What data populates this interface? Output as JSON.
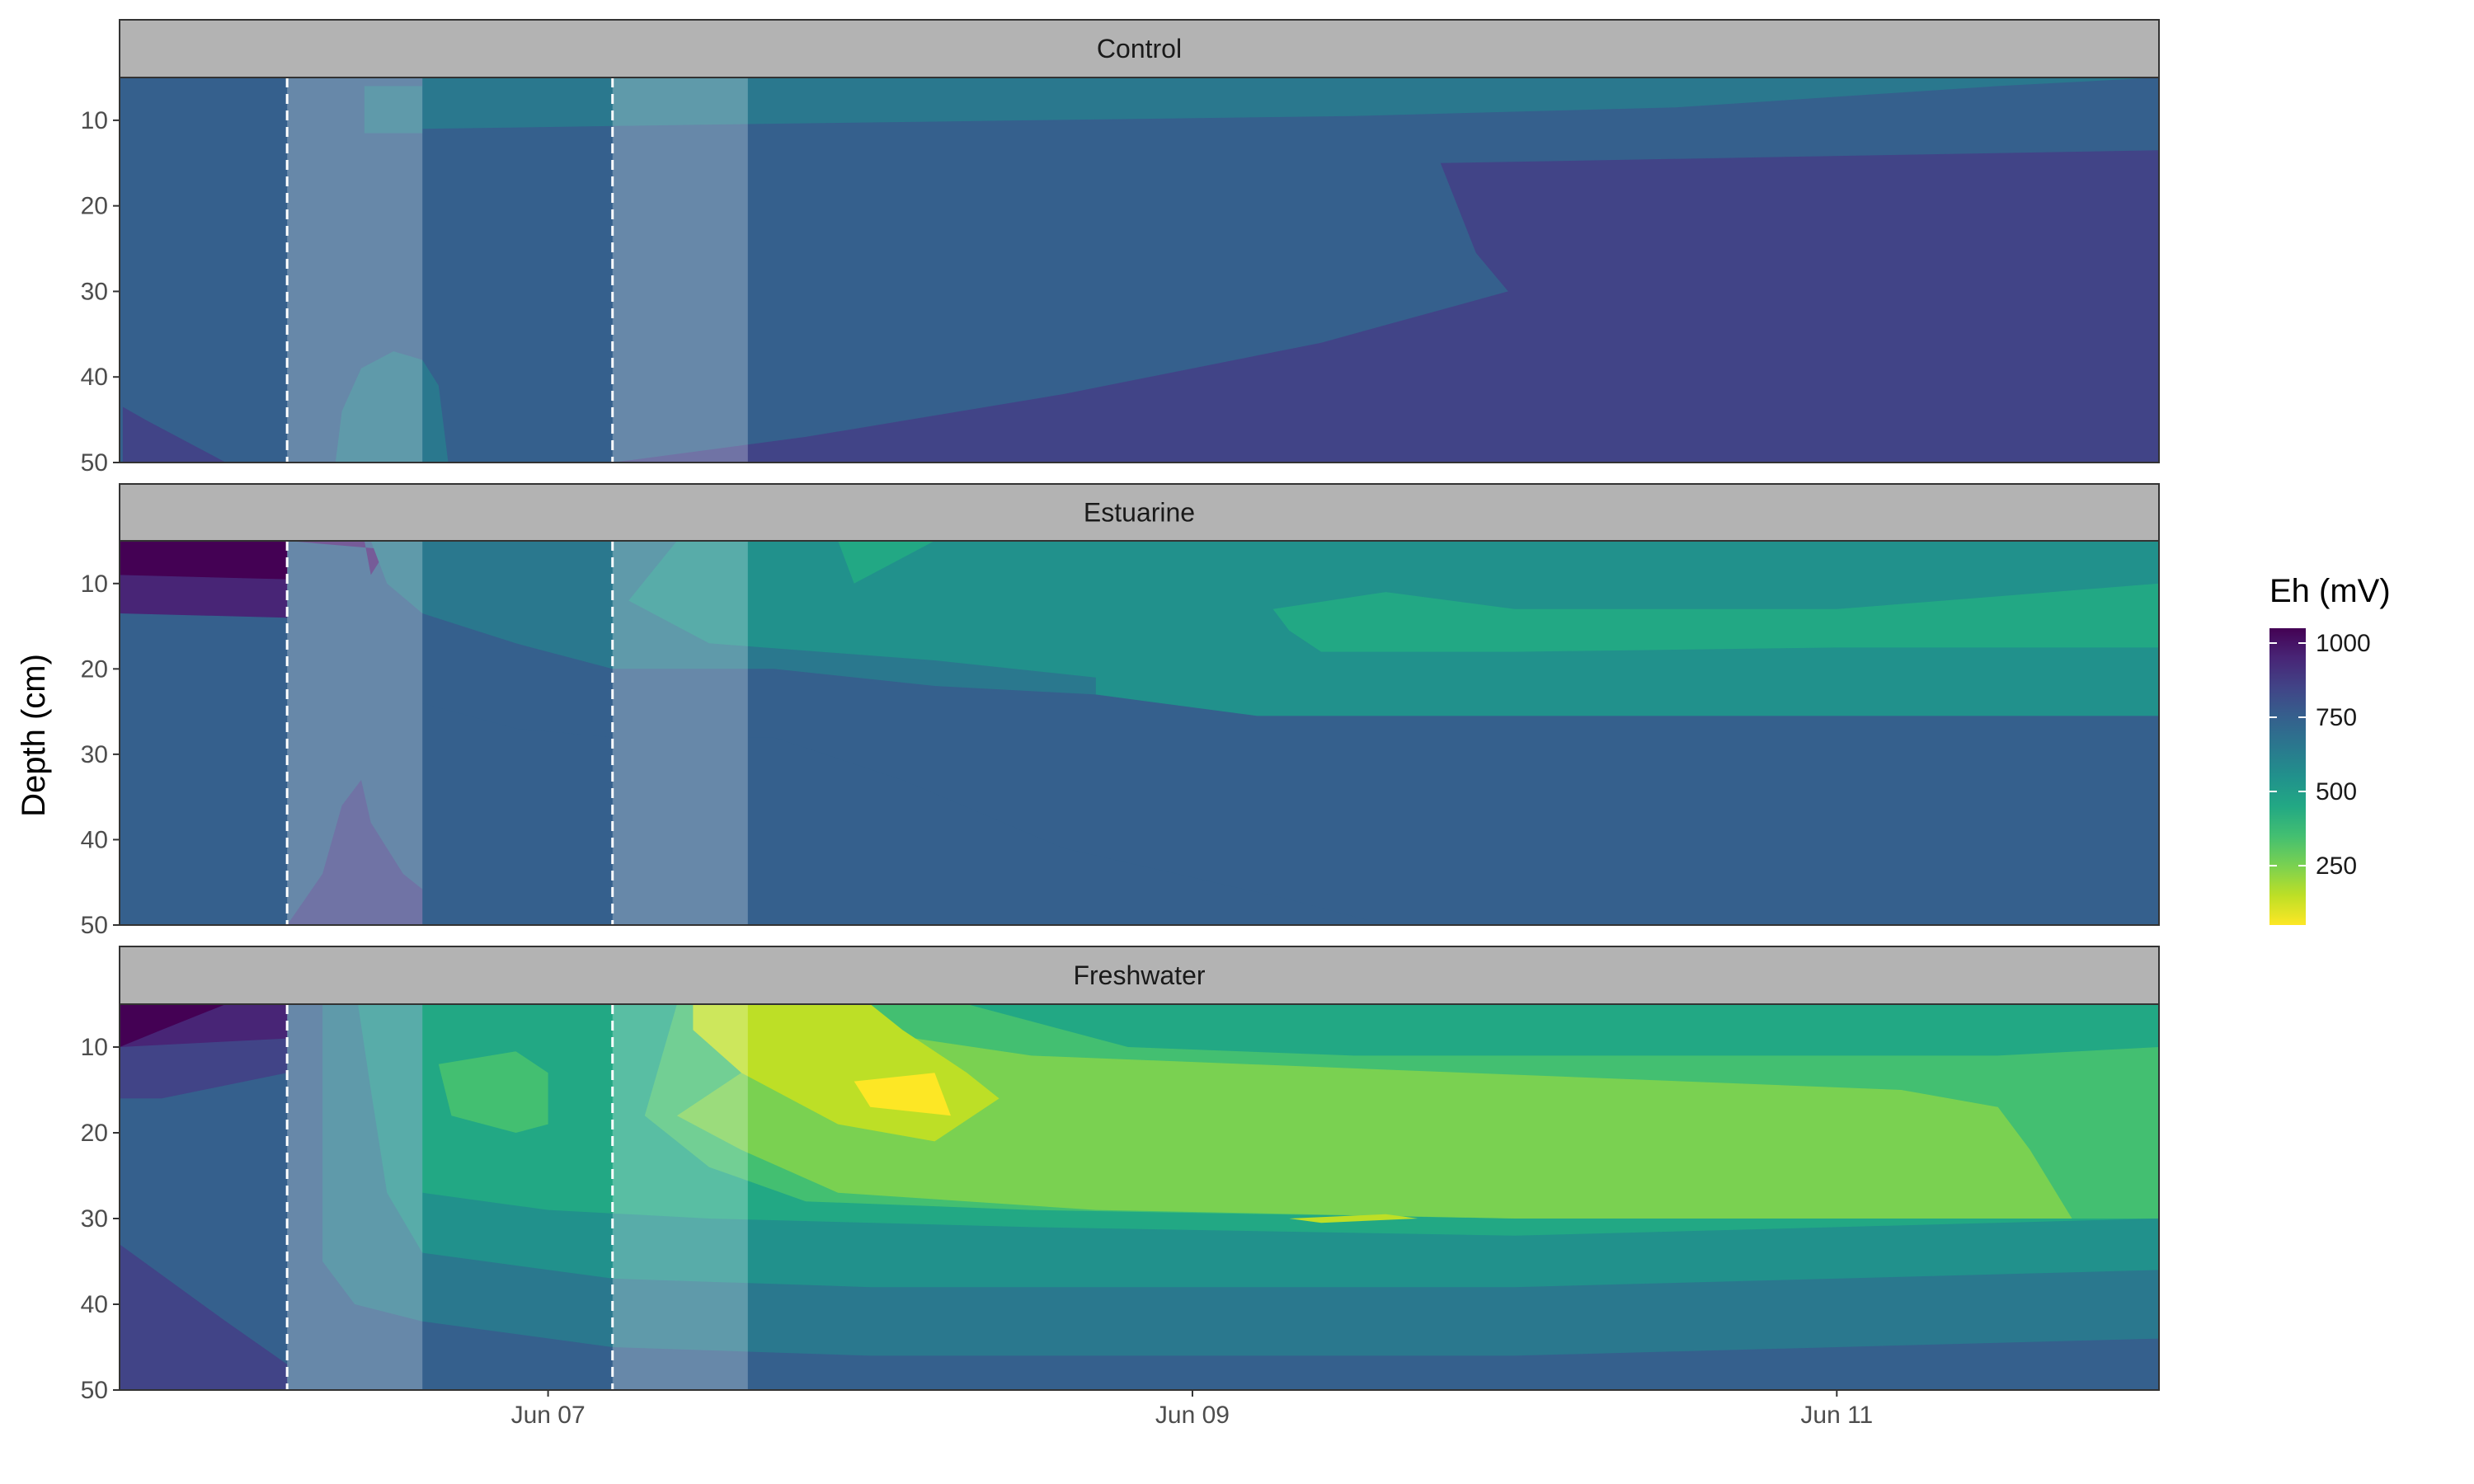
{
  "chart_data": {
    "type": "heatmap",
    "subtype": "faceted filled contour",
    "title": "",
    "xlabel": "",
    "ylabel": "Depth (cm)",
    "x_ticks": [
      "Jun 07",
      "Jun 09",
      "Jun 11"
    ],
    "x_tick_days": [
      7,
      9,
      11
    ],
    "xlim_days": [
      5.67,
      12
    ],
    "y_reversed": true,
    "ylim": [
      5,
      50
    ],
    "y_ticks": [
      10,
      20,
      30,
      40,
      50
    ],
    "grid": false,
    "color_scale": {
      "title": "Eh (mV)",
      "palette": "viridis (reversed)",
      "range": [
        50,
        1050
      ],
      "breaks": [
        1000,
        750,
        500,
        250
      ],
      "high_color": "#440154",
      "low_color": "#fde725"
    },
    "legend_position": "right",
    "events": {
      "dashed_lines_days": [
        6.19,
        7.2
      ],
      "shaded_periods_days": [
        [
          6.19,
          6.61
        ],
        [
          7.2,
          7.62
        ]
      ]
    },
    "band_colors": [
      "#440154",
      "#482576",
      "#414487",
      "#35608d",
      "#2a788e",
      "#21918c",
      "#22a884",
      "#43bf71",
      "#7ad151",
      "#bddf26",
      "#fde725"
    ],
    "band_eh_ranges_mv": [
      [
        950,
        1050
      ],
      [
        850,
        950
      ],
      [
        750,
        850
      ],
      [
        650,
        750
      ],
      [
        550,
        650
      ],
      [
        450,
        550
      ],
      [
        350,
        450
      ],
      [
        250,
        350
      ],
      [
        150,
        250
      ],
      [
        100,
        150
      ],
      [
        50,
        100
      ]
    ],
    "panels": [
      {
        "name": "Control",
        "background_band": 3,
        "regions": [
          {
            "band": 2,
            "points": [
              [
                5.68,
                43.5
              ],
              [
                5.75,
                45
              ],
              [
                5.9,
                48
              ],
              [
                6.0,
                50
              ],
              [
                5.68,
                50
              ]
            ]
          },
          {
            "band": 4,
            "points": [
              [
                6.43,
                6
              ],
              [
                6.61,
                6
              ],
              [
                6.61,
                11.5
              ],
              [
                6.43,
                11.5
              ]
            ]
          },
          {
            "band": 4,
            "points": [
              [
                6.61,
                5
              ],
              [
                12,
                5
              ],
              [
                11.5,
                6
              ],
              [
                10.5,
                8.5
              ],
              [
                9.5,
                9.5
              ],
              [
                8.5,
                10
              ],
              [
                7.5,
                10.5
              ],
              [
                6.61,
                11
              ]
            ]
          },
          {
            "band": 4,
            "points": [
              [
                6.34,
                50
              ],
              [
                6.36,
                44
              ],
              [
                6.42,
                39
              ],
              [
                6.52,
                37
              ],
              [
                6.61,
                38
              ],
              [
                6.61,
                50
              ]
            ]
          },
          {
            "band": 4,
            "points": [
              [
                6.61,
                38
              ],
              [
                6.66,
                41
              ],
              [
                6.69,
                50
              ],
              [
                6.61,
                50
              ]
            ]
          },
          {
            "band": 2,
            "points": [
              [
                9.77,
                15
              ],
              [
                12,
                13.5
              ],
              [
                12,
                50
              ],
              [
                7.2,
                50
              ],
              [
                7.8,
                47
              ],
              [
                8.6,
                42
              ],
              [
                9.4,
                36
              ],
              [
                9.98,
                30
              ],
              [
                9.88,
                25.5
              ]
            ]
          }
        ]
      },
      {
        "name": "Estuarine",
        "background_band": 3,
        "regions": [
          {
            "band": 1,
            "points": [
              [
                5.67,
                5
              ],
              [
                6.19,
                5
              ],
              [
                6.19,
                14
              ],
              [
                5.67,
                13.5
              ]
            ]
          },
          {
            "band": 0,
            "points": [
              [
                5.67,
                5
              ],
              [
                6.19,
                5
              ],
              [
                6.19,
                9.5
              ],
              [
                5.67,
                9
              ]
            ]
          },
          {
            "band": 1,
            "points": [
              [
                6.19,
                5
              ],
              [
                6.43,
                5
              ],
              [
                6.45,
                9
              ],
              [
                6.5,
                6
              ]
            ]
          },
          {
            "band": 4,
            "points": [
              [
                6.45,
                5
              ],
              [
                12,
                5
              ],
              [
                12,
                25.5
              ],
              [
                9.2,
                25.5
              ],
              [
                8.7,
                23
              ],
              [
                8.2,
                22
              ],
              [
                7.7,
                20
              ],
              [
                7.2,
                20
              ],
              [
                6.9,
                17
              ],
              [
                6.61,
                13.5
              ],
              [
                6.5,
                10
              ]
            ]
          },
          {
            "band": 5,
            "points": [
              [
                7.4,
                5
              ],
              [
                12,
                5
              ],
              [
                12,
                25.5
              ],
              [
                10.5,
                25.5
              ],
              [
                9.2,
                25.5
              ],
              [
                8.7,
                23
              ],
              [
                8.7,
                21
              ],
              [
                8.2,
                19
              ],
              [
                7.5,
                17
              ],
              [
                7.25,
                12
              ]
            ]
          },
          {
            "band": 6,
            "points": [
              [
                7.9,
                5
              ],
              [
                8.2,
                5
              ],
              [
                7.95,
                10
              ]
            ]
          },
          {
            "band": 6,
            "points": [
              [
                9.25,
                13
              ],
              [
                9.6,
                11
              ],
              [
                10,
                13
              ],
              [
                11,
                13
              ],
              [
                12,
                10
              ],
              [
                12,
                17.5
              ],
              [
                11,
                17.5
              ],
              [
                10,
                18
              ],
              [
                9.4,
                18
              ],
              [
                9.3,
                15.5
              ]
            ]
          },
          {
            "band": 2,
            "points": [
              [
                6.19,
                50
              ],
              [
                6.3,
                44
              ],
              [
                6.36,
                36
              ],
              [
                6.42,
                33
              ],
              [
                6.45,
                38
              ],
              [
                6.55,
                44
              ],
              [
                6.75,
                50
              ]
            ]
          },
          {
            "band": 3,
            "points": [
              [
                6.61,
                50
              ],
              [
                6.61,
                24
              ],
              [
                6.9,
                27
              ],
              [
                7.2,
                28
              ],
              [
                7.7,
                28
              ],
              [
                8.1,
                33
              ],
              [
                8.6,
                41
              ],
              [
                9.3,
                47
              ],
              [
                9.6,
                50
              ]
            ]
          }
        ]
      },
      {
        "name": "Freshwater",
        "background_band": 3,
        "regions": [
          {
            "band": 2,
            "points": [
              [
                5.67,
                5
              ],
              [
                6.19,
                5
              ],
              [
                6.19,
                13
              ],
              [
                5.8,
                16
              ],
              [
                5.67,
                16
              ]
            ]
          },
          {
            "band": 1,
            "points": [
              [
                5.67,
                5
              ],
              [
                6.19,
                5
              ],
              [
                6.19,
                9
              ],
              [
                5.67,
                10
              ]
            ]
          },
          {
            "band": 0,
            "points": [
              [
                5.67,
                5
              ],
              [
                6.0,
                5
              ],
              [
                5.8,
                8
              ],
              [
                5.67,
                10
              ]
            ]
          },
          {
            "band": 2,
            "points": [
              [
                5.67,
                33
              ],
              [
                6.0,
                42
              ],
              [
                6.19,
                47
              ],
              [
                6.19,
                50
              ],
              [
                5.67,
                50
              ]
            ]
          },
          {
            "band": 4,
            "points": [
              [
                6.3,
                5
              ],
              [
                12,
                5
              ],
              [
                12,
                44
              ],
              [
                10,
                46
              ],
              [
                8,
                46
              ],
              [
                7.2,
                45
              ],
              [
                6.61,
                42
              ],
              [
                6.4,
                40
              ],
              [
                6.3,
                35
              ]
            ]
          },
          {
            "band": 5,
            "points": [
              [
                6.41,
                5
              ],
              [
                12,
                5
              ],
              [
                12,
                36
              ],
              [
                10,
                38
              ],
              [
                8,
                38
              ],
              [
                7.2,
                37
              ],
              [
                6.61,
                34
              ],
              [
                6.5,
                27
              ],
              [
                6.45,
                15
              ]
            ]
          },
          {
            "band": 6,
            "points": [
              [
                6.61,
                5
              ],
              [
                12,
                5
              ],
              [
                12,
                30
              ],
              [
                10,
                32
              ],
              [
                8.5,
                31
              ],
              [
                7.5,
                30
              ],
              [
                7.0,
                29
              ],
              [
                6.61,
                27
              ]
            ]
          },
          {
            "band": 7,
            "points": [
              [
                7.4,
                5
              ],
              [
                8.3,
                5
              ],
              [
                8.8,
                10
              ],
              [
                9.5,
                11
              ],
              [
                10.5,
                11
              ],
              [
                11.5,
                11
              ],
              [
                12,
                10
              ],
              [
                12,
                30
              ],
              [
                11,
                30
              ],
              [
                10,
                30
              ],
              [
                8.5,
                29
              ],
              [
                7.8,
                28
              ],
              [
                7.5,
                24
              ],
              [
                7.3,
                18
              ]
            ]
          },
          {
            "band": 8,
            "points": [
              [
                7.6,
                6
              ],
              [
                8.5,
                11
              ],
              [
                11.2,
                15
              ],
              [
                11.5,
                17
              ],
              [
                11.6,
                22
              ],
              [
                11.73,
                30
              ],
              [
                10,
                30
              ],
              [
                8.7,
                29
              ],
              [
                7.9,
                27
              ],
              [
                7.6,
                22
              ],
              [
                7.4,
                18
              ],
              [
                7.6,
                13
              ]
            ]
          },
          {
            "band": 7,
            "points": [
              [
                6.66,
                12
              ],
              [
                6.9,
                10.5
              ],
              [
                7.0,
                13
              ],
              [
                7.0,
                19
              ],
              [
                6.9,
                20
              ],
              [
                6.7,
                18
              ]
            ]
          },
          {
            "band": 9,
            "points": [
              [
                7.45,
                5
              ],
              [
                8.0,
                5
              ],
              [
                8.1,
                8
              ],
              [
                8.3,
                13
              ],
              [
                8.4,
                16
              ],
              [
                8.2,
                21
              ],
              [
                7.9,
                19
              ],
              [
                7.6,
                13
              ],
              [
                7.45,
                8
              ]
            ]
          },
          {
            "band": 10,
            "points": [
              [
                7.95,
                14
              ],
              [
                8.2,
                13
              ],
              [
                8.25,
                18
              ],
              [
                8.0,
                17
              ]
            ]
          },
          {
            "band": 9,
            "points": [
              [
                9.3,
                30
              ],
              [
                9.6,
                29.5
              ],
              [
                9.7,
                30
              ],
              [
                9.4,
                30.5
              ]
            ]
          }
        ]
      }
    ]
  }
}
